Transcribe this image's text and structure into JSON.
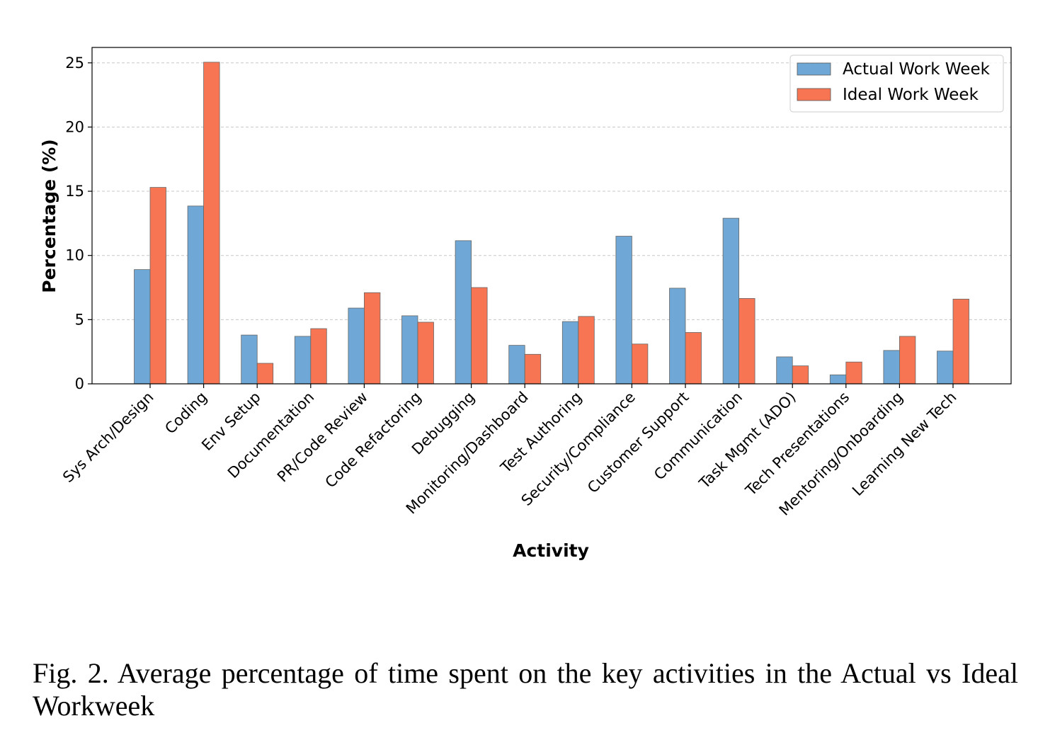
{
  "chart_data": {
    "type": "bar",
    "title": "",
    "xlabel": "Activity",
    "ylabel": "Percentage (%)",
    "ylim": [
      0,
      26.2
    ],
    "yticks": [
      0,
      5,
      10,
      15,
      20,
      25
    ],
    "grid": "y-dashed",
    "legend_position": "top-right",
    "categories": [
      "Sys Arch/Design",
      "Coding",
      "Env Setup",
      "Documentation",
      "PR/Code Review",
      "Code Refactoring",
      "Debugging",
      "Monitoring/Dashboard",
      "Test Authoring",
      "Security/Compliance",
      "Customer Support",
      "Communication",
      "Task Mgmt (ADO)",
      "Tech Presentations",
      "Mentoring/Onboarding",
      "Learning New Tech"
    ],
    "series": [
      {
        "name": "Actual Work Week",
        "color": "#6fa8d6",
        "values": [
          8.9,
          13.85,
          3.8,
          3.7,
          5.9,
          5.3,
          11.15,
          3.0,
          4.85,
          11.5,
          7.45,
          12.9,
          2.1,
          0.7,
          2.6,
          2.55
        ]
      },
      {
        "name": "Ideal Work Week",
        "color": "#f77552",
        "values": [
          15.3,
          25.05,
          1.6,
          4.3,
          7.1,
          4.8,
          7.5,
          2.3,
          5.25,
          3.1,
          4.0,
          6.65,
          1.4,
          1.7,
          3.7,
          6.6
        ]
      }
    ]
  },
  "caption": {
    "text": "Fig. 2.  Average percentage of time spent on the key activities in the Actual vs Ideal Workweek"
  }
}
